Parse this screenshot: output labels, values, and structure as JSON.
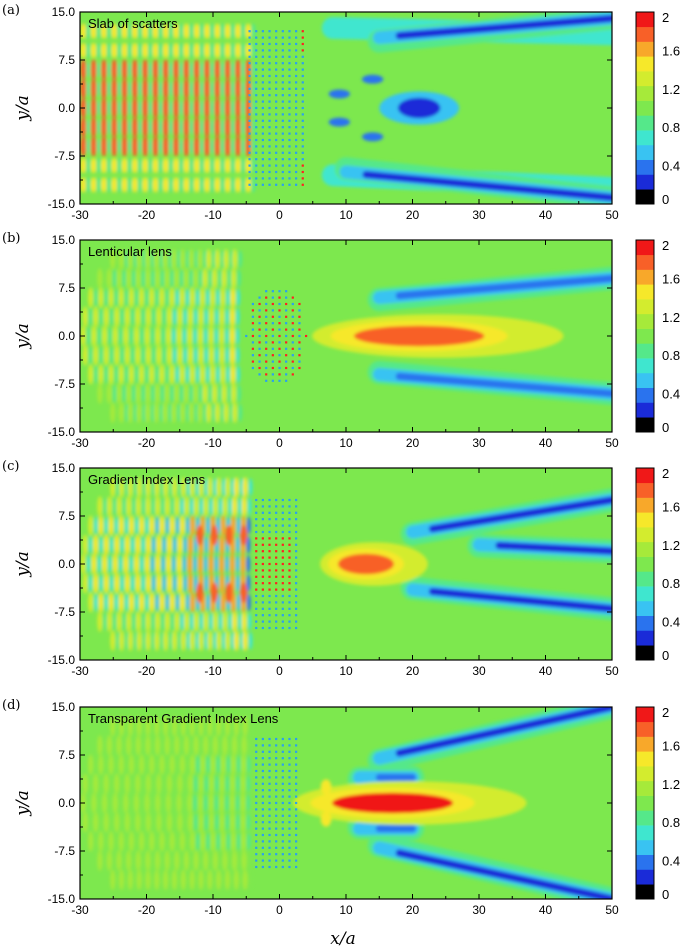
{
  "figure": {
    "xlabel": "x/a",
    "ylabel": "y/a",
    "colors": {
      "scale": [
        "#000000",
        "#1a2bd8",
        "#2a73ee",
        "#39c3f2",
        "#3fe6cf",
        "#55e88a",
        "#7ee84e",
        "#a6ea3a",
        "#d3ec2e",
        "#f6e82a",
        "#f8a82a",
        "#f86028",
        "#f01818"
      ],
      "background": "#7de84e",
      "scatterer": "#2aa0f0",
      "scatterer_hot": "#ff2020"
    }
  },
  "chart_data": [
    {
      "type": "heatmap",
      "panel": "(a)",
      "title": "Slab of scatters",
      "x_range": [
        -30,
        50
      ],
      "y_range": [
        -15,
        15
      ],
      "x_ticks": [
        "-30",
        "-20",
        "-10",
        "0",
        "10",
        "20",
        "30",
        "40",
        "50"
      ],
      "y_ticks": [
        "15.0",
        "7.5",
        "0.0",
        "-7.5",
        "-15.0"
      ],
      "colorbar": {
        "range": [
          0,
          2
        ],
        "ticks": [
          "2",
          "1.6",
          "1.2",
          "0.8",
          "0.4",
          "0"
        ]
      },
      "scatterer_region": {
        "x": [
          -4.5,
          4.0
        ],
        "y": [
          -12.0,
          12.0
        ]
      },
      "features": {
        "incident_bands": [
          -12,
          -9,
          -6,
          -3,
          0,
          3,
          6,
          9,
          12
        ],
        "dark_beams": [
          {
            "x": [
              15,
              50
            ],
            "y": [
              11,
              14
            ],
            "value": 0.2
          },
          {
            "x": [
              10,
              50
            ],
            "y": [
              -10,
              -14
            ],
            "value": 0.2
          }
        ],
        "blue_spot": {
          "x": 21,
          "y": 0,
          "value": 0.2
        }
      }
    },
    {
      "type": "heatmap",
      "panel": "(b)",
      "title": "Lenticular lens",
      "x_range": [
        -30,
        50
      ],
      "y_range": [
        -15,
        15
      ],
      "x_ticks": [
        "-30",
        "-20",
        "-10",
        "0",
        "10",
        "20",
        "30",
        "40",
        "50"
      ],
      "y_ticks": [
        "15.0",
        "7.5",
        "0.0",
        "-7.5",
        "-15.0"
      ],
      "colorbar": {
        "range": [
          0,
          2
        ],
        "ticks": [
          "2",
          "1.6",
          "1.2",
          "0.8",
          "0.4",
          "0"
        ]
      },
      "scatterer_region": {
        "x": [
          -5.0,
          4.0
        ],
        "y": [
          -8.0,
          8.0
        ],
        "shape": "lens"
      },
      "features": {
        "focus": {
          "x": 21,
          "y": 0,
          "value": 1.9
        },
        "dark_beams": [
          {
            "x": [
              15,
              50
            ],
            "y": [
              6,
              9
            ],
            "value": 0.3
          },
          {
            "x": [
              15,
              50
            ],
            "y": [
              -6,
              -9
            ],
            "value": 0.3
          }
        ]
      }
    },
    {
      "type": "heatmap",
      "panel": "(c)",
      "title": "Gradient Index Lens",
      "x_range": [
        -30,
        50
      ],
      "y_range": [
        -15,
        15
      ],
      "x_ticks": [
        "-30",
        "-20",
        "-10",
        "0",
        "10",
        "20",
        "30",
        "40",
        "50"
      ],
      "y_ticks": [
        "15.0",
        "7.5",
        "0.0",
        "-7.5",
        "-15.0"
      ],
      "colorbar": {
        "range": [
          0,
          2
        ],
        "ticks": [
          "2",
          "1.6",
          "1.2",
          "0.8",
          "0.4",
          "0"
        ]
      },
      "scatterer_region": {
        "x": [
          -3.5,
          3.0
        ],
        "y": [
          -10.0,
          10.0
        ]
      },
      "features": {
        "focus": {
          "x": 13,
          "y": 0,
          "value": 1.9
        },
        "dark_beams": [
          {
            "x": [
              20,
              50
            ],
            "y": [
              5,
              10
            ],
            "value": 0.2
          },
          {
            "x": [
              20,
              50
            ],
            "y": [
              -4,
              -7
            ],
            "value": 0.2
          },
          {
            "x": [
              30,
              50
            ],
            "y": [
              3,
              2
            ],
            "value": 0.2
          }
        ]
      }
    },
    {
      "type": "heatmap",
      "panel": "(d)",
      "title": "Transparent Gradient Index Lens",
      "x_range": [
        -30,
        50
      ],
      "y_range": [
        -15,
        15
      ],
      "x_ticks": [
        "-30",
        "-20",
        "-10",
        "0",
        "10",
        "20",
        "30",
        "40",
        "50"
      ],
      "y_ticks": [
        "15.0",
        "7.5",
        "0.0",
        "-7.5",
        "-15.0"
      ],
      "colorbar": {
        "range": [
          0,
          2
        ],
        "ticks": [
          "2",
          "1.6",
          "1.2",
          "0.8",
          "0.4",
          "0"
        ]
      },
      "scatterer_region": {
        "x": [
          -3.5,
          3.0
        ],
        "y": [
          -10.0,
          10.0
        ]
      },
      "features": {
        "focus": {
          "x": 17,
          "y": 0,
          "value": 2.0
        },
        "dark_beams": [
          {
            "x": [
              15,
              50
            ],
            "y": [
              7,
              15
            ],
            "value": 0.2
          },
          {
            "x": [
              15,
              50
            ],
            "y": [
              -7,
              -15
            ],
            "value": 0.2
          },
          {
            "x": [
              12,
              20
            ],
            "y": [
              4,
              4
            ],
            "value": 0.3
          },
          {
            "x": [
              12,
              20
            ],
            "y": [
              -4,
              -4
            ],
            "value": 0.3
          }
        ]
      }
    }
  ]
}
